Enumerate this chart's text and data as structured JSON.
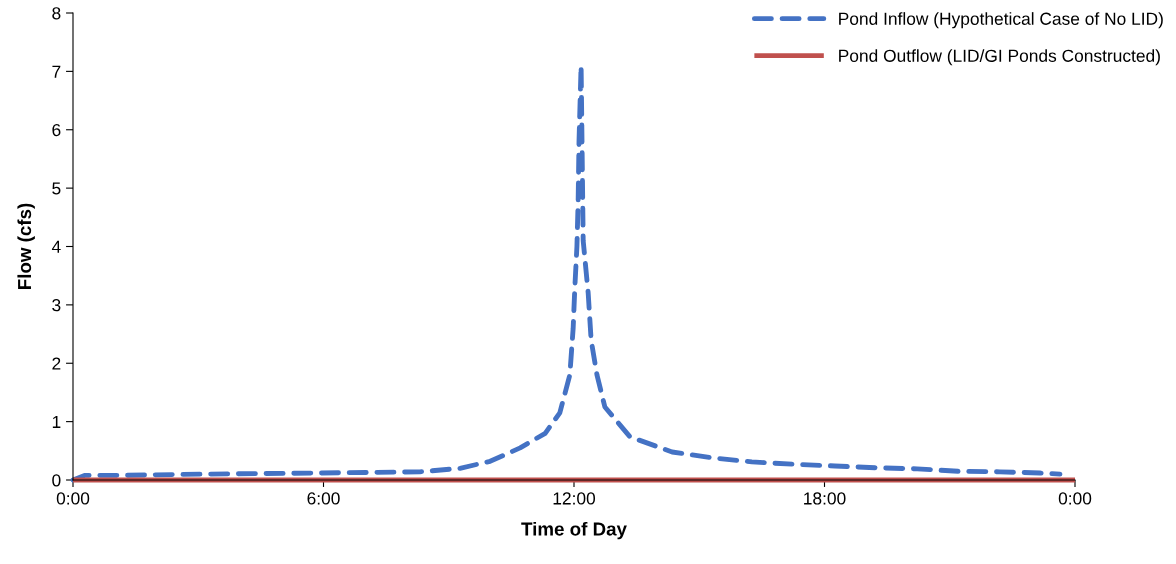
{
  "chart_data": {
    "type": "line",
    "xlabel": "Time of Day",
    "ylabel": "Flow (cfs)",
    "xlim": [
      0,
      24
    ],
    "ylim": [
      0,
      8
    ],
    "xticks": [
      {
        "value": 0,
        "label": "0:00"
      },
      {
        "value": 6,
        "label": "6:00"
      },
      {
        "value": 12,
        "label": "12:00"
      },
      {
        "value": 18,
        "label": "18:00"
      },
      {
        "value": 24,
        "label": "0:00"
      }
    ],
    "yticks": [
      0,
      1,
      2,
      3,
      4,
      5,
      6,
      7,
      8
    ],
    "grid": false,
    "legend": "top right",
    "marker": "none",
    "series": [
      {
        "name": "Pond Inflow (Hypothetical Case of No LID)",
        "color": "#4472c4",
        "line_style": "dashed",
        "x": [
          0,
          0.29,
          1.13,
          3.04,
          5.92,
          8.31,
          9.27,
          9.99,
          10.71,
          11.31,
          11.66,
          11.9,
          11.98,
          12.02,
          12.07,
          12.1,
          12.12,
          12.17,
          12.22,
          12.34,
          12.41,
          12.55,
          12.74,
          13.34,
          14.35,
          15.31,
          16.26,
          17.25,
          18.25,
          19.23,
          20.22,
          21.2,
          22.2,
          23.16,
          23.64
        ],
        "values": [
          0,
          0.08,
          0.08,
          0.1,
          0.12,
          0.14,
          0.2,
          0.32,
          0.55,
          0.8,
          1.15,
          1.8,
          2.6,
          3.3,
          4.0,
          4.8,
          5.8,
          7.1,
          4.1,
          3.2,
          2.4,
          1.8,
          1.25,
          0.74,
          0.48,
          0.38,
          0.31,
          0.27,
          0.24,
          0.21,
          0.19,
          0.15,
          0.14,
          0.12,
          0.1
        ]
      },
      {
        "name": "Pond Outflow (LID/GI Ponds Constructed)",
        "color": "#c0504d",
        "line_style": "solid",
        "x": [
          0,
          24
        ],
        "values": [
          0,
          0
        ]
      }
    ]
  }
}
